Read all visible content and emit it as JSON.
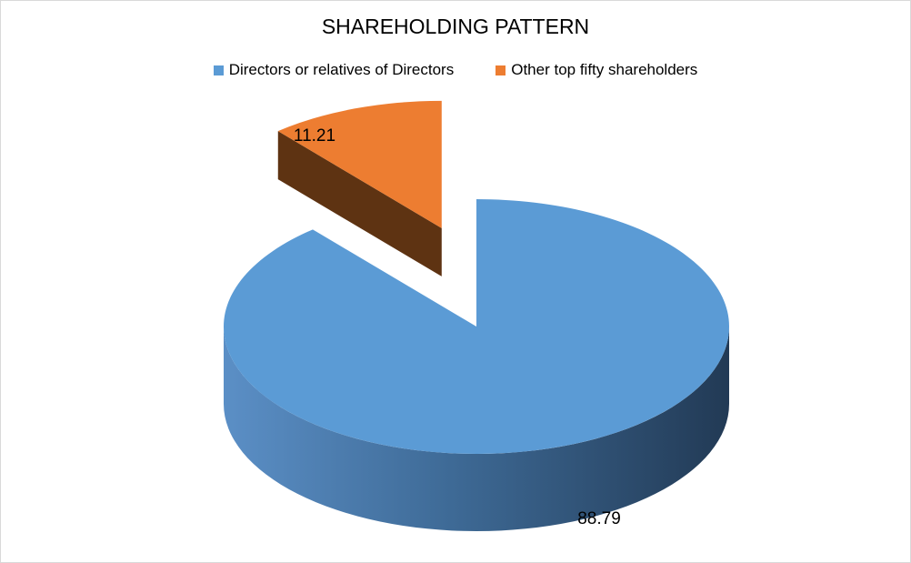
{
  "chart_data": {
    "type": "pie",
    "title": "SHAREHOLDING PATTERN",
    "legend_position": "top",
    "three_d": true,
    "exploded_slice": "Other top fifty shareholders",
    "slices": [
      {
        "label": "Directors or relatives of Directors",
        "value": 88.79,
        "value_label": "88.79",
        "color": "#5b9bd5",
        "side_color_light": "#5b8fc6",
        "side_color_dark": "#223a55"
      },
      {
        "label": "Other top fifty shareholders",
        "value": 11.21,
        "value_label": "11.21",
        "color": "#ed7d31",
        "side_color_light": "#5e3312",
        "side_color_dark": "#5e3312"
      }
    ]
  }
}
